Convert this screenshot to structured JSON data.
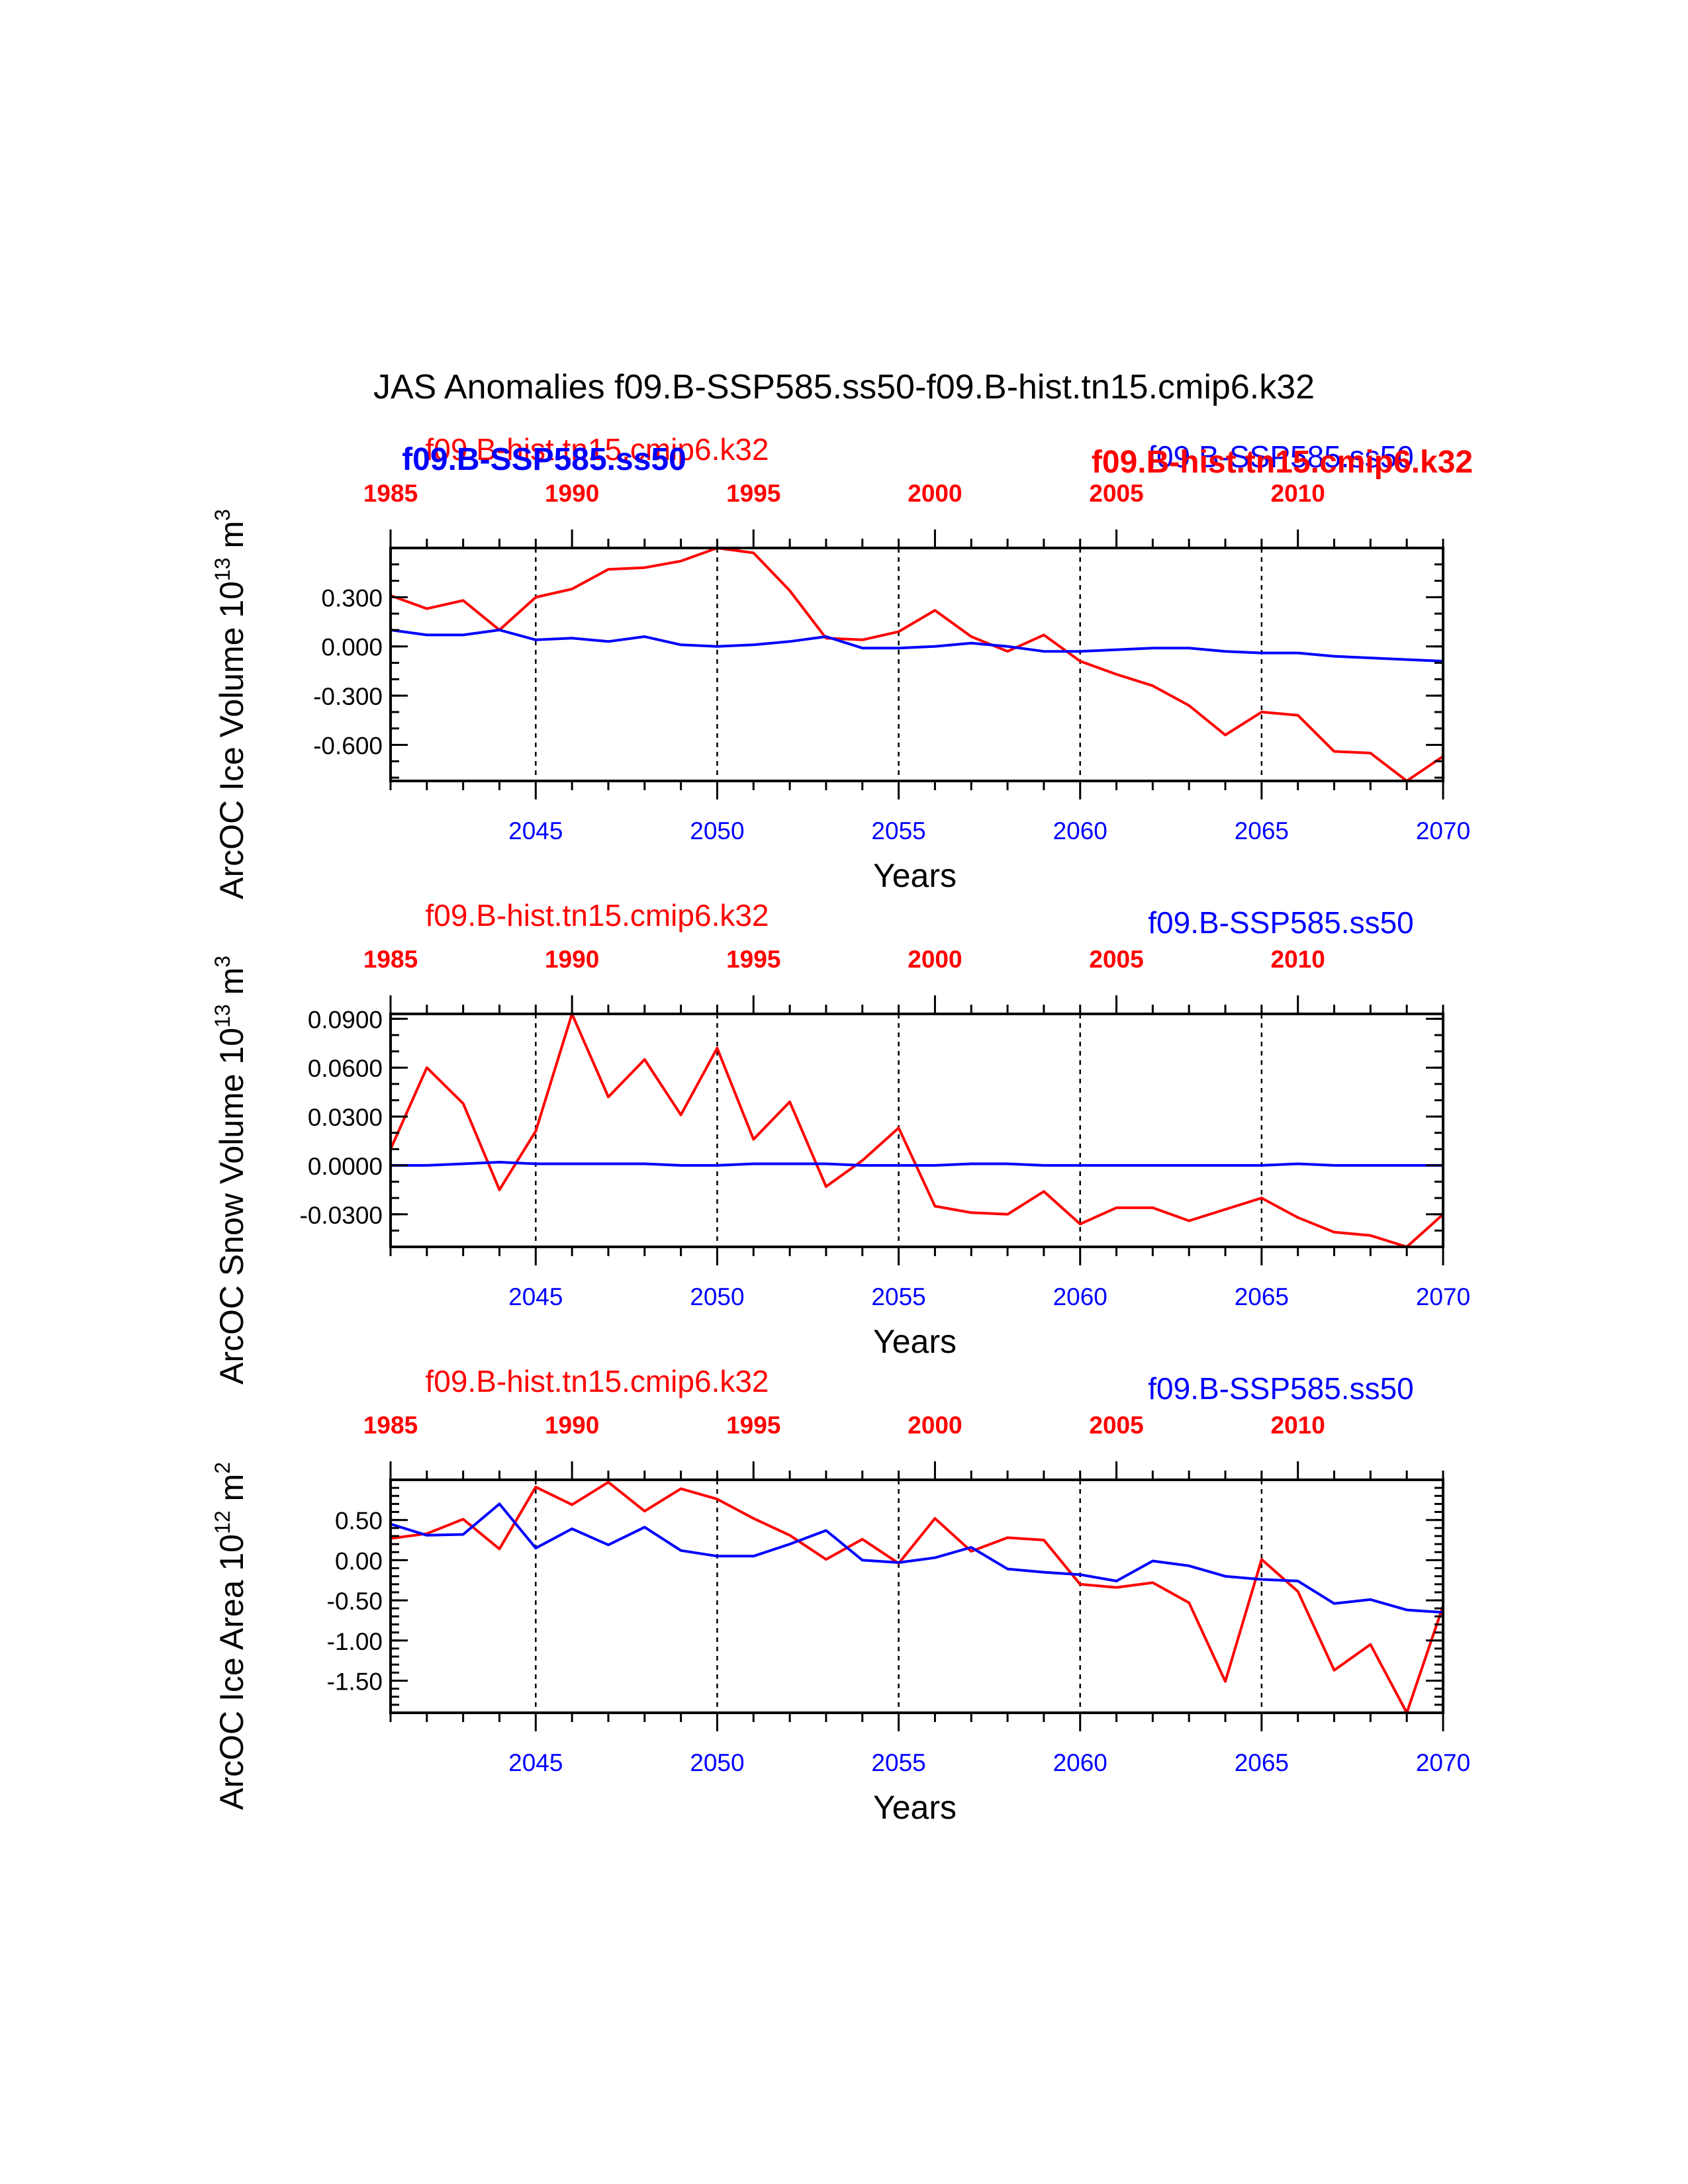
{
  "figure": {
    "title": "JAS Anomalies f09.B-SSP585.ss50-f09.B-hist.tn15.cmip6.k32",
    "colors": {
      "hist": "#ff0000",
      "ssp": "#0000ff",
      "axis": "#000000"
    }
  },
  "chart_data": [
    {
      "type": "line",
      "ylabel_main": "ArcOC Ice Volume 10",
      "ylabel_exp": "13",
      "ylabel_unit": " m",
      "ylabel_unit_exp": "3",
      "xlabel": "Years",
      "top_label_hist": "f09.B-hist.tn15.cmip6.k32",
      "top_label_ssp": "f09.B-SSP585.ss50",
      "overlay_label_ssp": "f09.B-SSP585.ss50",
      "overlay_label_hist": "f09.B-hist.tn15.cmip6.k32",
      "ylim": [
        -0.82,
        0.6
      ],
      "yticks": [
        0.3,
        0.0,
        -0.3,
        -0.6
      ],
      "ytick_labels": [
        "0.300",
        "0.000",
        "-0.300",
        "-0.600"
      ],
      "yminor_step": 0.1,
      "xlim_bottom": [
        2041,
        2070
      ],
      "xticks_bottom": [
        2045,
        2050,
        2055,
        2060,
        2065,
        2070
      ],
      "xlim_top": [
        1985,
        2014
      ],
      "xticks_top": [
        1985,
        1990,
        1995,
        2000,
        2005,
        2010
      ],
      "vlines": [
        2045,
        2050,
        2055,
        2060,
        2065
      ],
      "series": [
        {
          "name": "f09.B-hist.tn15.cmip6.k32",
          "color": "#ff0000",
          "x": [
            1985,
            1986,
            1987,
            1988,
            1989,
            1990,
            1991,
            1992,
            1993,
            1994,
            1995,
            1996,
            1997,
            1998,
            1999,
            2000,
            2001,
            2002,
            2003,
            2004,
            2005,
            2006,
            2007,
            2008,
            2009,
            2010,
            2011,
            2012,
            2013,
            2014
          ],
          "values": [
            0.31,
            0.23,
            0.28,
            0.1,
            0.3,
            0.35,
            0.47,
            0.48,
            0.52,
            0.6,
            0.57,
            0.34,
            0.05,
            0.04,
            0.09,
            0.22,
            0.06,
            -0.03,
            0.07,
            -0.09,
            -0.17,
            -0.24,
            -0.36,
            -0.54,
            -0.4,
            -0.42,
            -0.64,
            -0.65,
            -0.82,
            -0.67
          ]
        },
        {
          "name": "f09.B-SSP585.ss50",
          "color": "#0000ff",
          "x": [
            2041,
            2042,
            2043,
            2044,
            2045,
            2046,
            2047,
            2048,
            2049,
            2050,
            2051,
            2052,
            2053,
            2054,
            2055,
            2056,
            2057,
            2058,
            2059,
            2060,
            2061,
            2062,
            2063,
            2064,
            2065,
            2066,
            2067,
            2068,
            2069,
            2070
          ],
          "values": [
            0.1,
            0.07,
            0.07,
            0.1,
            0.04,
            0.05,
            0.03,
            0.06,
            0.01,
            0.0,
            0.01,
            0.03,
            0.06,
            -0.01,
            -0.01,
            0.0,
            0.02,
            0.0,
            -0.03,
            -0.03,
            -0.02,
            -0.01,
            -0.01,
            -0.03,
            -0.04,
            -0.04,
            -0.06,
            -0.07,
            -0.08,
            -0.09
          ]
        }
      ]
    },
    {
      "type": "line",
      "ylabel_main": "ArcOC Snow Volume 10",
      "ylabel_exp": "13",
      "ylabel_unit": " m",
      "ylabel_unit_exp": "3",
      "xlabel": "Years",
      "top_label_hist": "f09.B-hist.tn15.cmip6.k32",
      "top_label_ssp": "f09.B-SSP585.ss50",
      "ylim": [
        -0.05,
        0.093
      ],
      "yticks": [
        0.09,
        0.06,
        0.03,
        0.0,
        -0.03
      ],
      "ytick_labels": [
        "0.0900",
        "0.0600",
        "0.0300",
        "0.0000",
        "-0.0300"
      ],
      "yminor_step": 0.01,
      "xlim_bottom": [
        2041,
        2070
      ],
      "xticks_bottom": [
        2045,
        2050,
        2055,
        2060,
        2065,
        2070
      ],
      "xlim_top": [
        1985,
        2014
      ],
      "xticks_top": [
        1985,
        1990,
        1995,
        2000,
        2005,
        2010
      ],
      "vlines": [
        2045,
        2050,
        2055,
        2060,
        2065
      ],
      "series": [
        {
          "name": "f09.B-hist.tn15.cmip6.k32",
          "color": "#ff0000",
          "x": [
            1985,
            1986,
            1987,
            1988,
            1989,
            1990,
            1991,
            1992,
            1993,
            1994,
            1995,
            1996,
            1997,
            1998,
            1999,
            2000,
            2001,
            2002,
            2003,
            2004,
            2005,
            2006,
            2007,
            2008,
            2009,
            2010,
            2011,
            2012,
            2013,
            2014
          ],
          "values": [
            0.01,
            0.06,
            0.038,
            -0.015,
            0.021,
            0.093,
            0.042,
            0.065,
            0.031,
            0.072,
            0.016,
            0.039,
            -0.013,
            0.003,
            0.023,
            -0.025,
            -0.029,
            -0.03,
            -0.016,
            -0.036,
            -0.026,
            -0.026,
            -0.034,
            -0.027,
            -0.02,
            -0.032,
            -0.041,
            -0.043,
            -0.05,
            -0.03
          ]
        },
        {
          "name": "f09.B-SSP585.ss50",
          "color": "#0000ff",
          "x": [
            2041,
            2042,
            2043,
            2044,
            2045,
            2046,
            2047,
            2048,
            2049,
            2050,
            2051,
            2052,
            2053,
            2054,
            2055,
            2056,
            2057,
            2058,
            2059,
            2060,
            2061,
            2062,
            2063,
            2064,
            2065,
            2066,
            2067,
            2068,
            2069,
            2070
          ],
          "values": [
            0.0,
            0.0,
            0.001,
            0.002,
            0.001,
            0.001,
            0.001,
            0.001,
            0.0,
            0.0,
            0.001,
            0.001,
            0.001,
            0.0,
            0.0,
            0.0,
            0.001,
            0.001,
            0.0,
            0.0,
            0.0,
            0.0,
            0.0,
            0.0,
            0.0,
            0.001,
            0.0,
            0.0,
            0.0,
            0.0
          ]
        }
      ]
    },
    {
      "type": "line",
      "ylabel_main": "ArcOC Ice Area 10",
      "ylabel_exp": "12",
      "ylabel_unit": " m",
      "ylabel_unit_exp": "2",
      "xlabel": "Years",
      "top_label_hist": "f09.B-hist.tn15.cmip6.k32",
      "top_label_ssp": "f09.B-SSP585.ss50",
      "ylim": [
        -1.9,
        1.0
      ],
      "yticks": [
        0.5,
        0.0,
        -0.5,
        -1.0,
        -1.5
      ],
      "ytick_labels": [
        "0.50",
        "0.00",
        "-0.50",
        "-1.00",
        "-1.50"
      ],
      "yminor_step": 0.1,
      "xlim_bottom": [
        2041,
        2070
      ],
      "xticks_bottom": [
        2045,
        2050,
        2055,
        2060,
        2065,
        2070
      ],
      "xlim_top": [
        1985,
        2014
      ],
      "xticks_top": [
        1985,
        1990,
        1995,
        2000,
        2005,
        2010
      ],
      "vlines": [
        2045,
        2050,
        2055,
        2060,
        2065
      ],
      "series": [
        {
          "name": "f09.B-hist.tn15.cmip6.k32",
          "color": "#ff0000",
          "x": [
            1985,
            1986,
            1987,
            1988,
            1989,
            1990,
            1991,
            1992,
            1993,
            1994,
            1995,
            1996,
            1997,
            1998,
            1999,
            2000,
            2001,
            2002,
            2003,
            2004,
            2005,
            2006,
            2007,
            2008,
            2009,
            2010,
            2011,
            2012,
            2013,
            2014
          ],
          "values": [
            0.27,
            0.33,
            0.51,
            0.14,
            0.91,
            0.69,
            0.97,
            0.61,
            0.89,
            0.76,
            0.52,
            0.31,
            0.01,
            0.26,
            -0.04,
            0.52,
            0.11,
            0.28,
            0.25,
            -0.3,
            -0.34,
            -0.28,
            -0.53,
            -1.51,
            0.01,
            -0.39,
            -1.37,
            -1.05,
            -1.9,
            -0.57
          ]
        },
        {
          "name": "f09.B-SSP585.ss50",
          "color": "#0000ff",
          "x": [
            2041,
            2042,
            2043,
            2044,
            2045,
            2046,
            2047,
            2048,
            2049,
            2050,
            2051,
            2052,
            2053,
            2054,
            2055,
            2056,
            2057,
            2058,
            2059,
            2060,
            2061,
            2062,
            2063,
            2064,
            2065,
            2066,
            2067,
            2068,
            2069,
            2070
          ],
          "values": [
            0.45,
            0.31,
            0.32,
            0.7,
            0.15,
            0.39,
            0.19,
            0.41,
            0.12,
            0.05,
            0.05,
            0.2,
            0.37,
            0.0,
            -0.03,
            0.03,
            0.16,
            -0.11,
            -0.15,
            -0.18,
            -0.26,
            -0.01,
            -0.07,
            -0.2,
            -0.24,
            -0.26,
            -0.54,
            -0.49,
            -0.62,
            -0.65
          ]
        }
      ]
    }
  ]
}
